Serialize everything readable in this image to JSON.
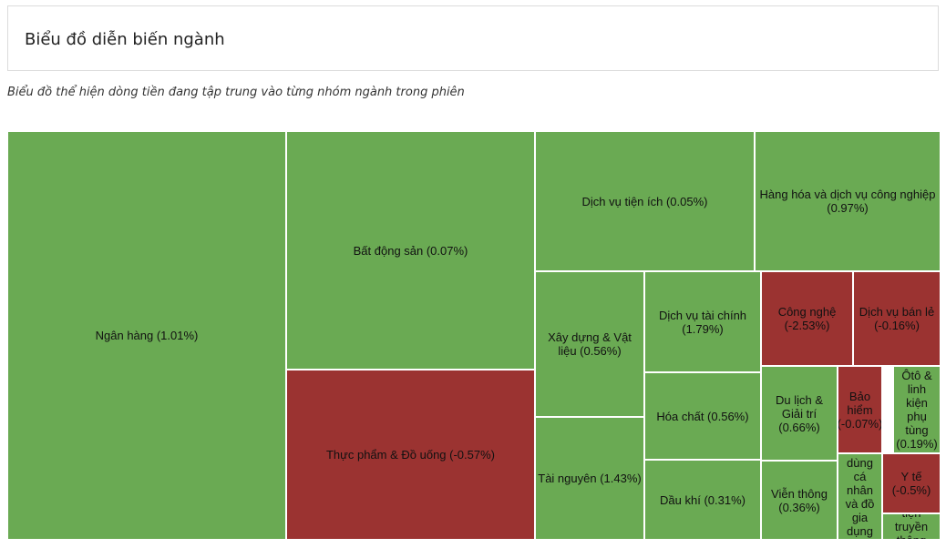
{
  "header": {
    "title": "Biểu đồ diễn biến ngành"
  },
  "subtitle": "Biểu đồ thể hiện dòng tiền đang tập trung vào từng nhóm ngành trong phiên",
  "colors": {
    "positive": "#6aaa53",
    "negative": "#9b3331",
    "border": "#ffffff"
  },
  "chart_data": {
    "type": "treemap",
    "title": "Biểu đồ diễn biến ngành",
    "subtitle": "Biểu đồ thể hiện dòng tiền đang tập trung vào từng nhóm ngành trong phiên",
    "items": [
      {
        "name": "Ngân hàng",
        "change": 1.01,
        "label": "Ngân hàng (1.01%)"
      },
      {
        "name": "Bất động sản",
        "change": 0.07,
        "label": "Bất động sản (0.07%)"
      },
      {
        "name": "Thực phẩm & Đồ uống",
        "change": -0.57,
        "label": "Thực phẩm & Đồ uống (-0.57%)"
      },
      {
        "name": "Dịch vụ tiện ích",
        "change": 0.05,
        "label": "Dịch vụ tiện ích (0.05%)"
      },
      {
        "name": "Hàng hóa và dịch vụ công nghiệp",
        "change": 0.97,
        "label": "Hàng hóa và dịch vụ công nghiệp (0.97%)"
      },
      {
        "name": "Xây dựng & Vật liệu",
        "change": 0.56,
        "label": "Xây dựng & Vật liệu (0.56%)"
      },
      {
        "name": "Dịch vụ tài chính",
        "change": 1.79,
        "label": "Dịch vụ tài chính (1.79%)"
      },
      {
        "name": "Công nghệ",
        "change": -2.53,
        "label": "Công nghệ (-2.53%)"
      },
      {
        "name": "Dịch vụ bán lẻ",
        "change": -0.16,
        "label": "Dịch vụ bán lẻ (-0.16%)"
      },
      {
        "name": "Hóa chất",
        "change": 0.56,
        "label": "Hóa chất (0.56%)"
      },
      {
        "name": "Du lịch & Giải trí",
        "change": 0.66,
        "label": "Du lịch & Giải trí (0.66%)"
      },
      {
        "name": "Bảo hiểm",
        "change": -0.07,
        "label": "Bảo hiểm (-0.07%)"
      },
      {
        "name": "Ôtô & linh kiện phụ tùng",
        "change": 0.19,
        "label": "Ôtô & linh kiện phụ tùng (0.19%)"
      },
      {
        "name": "Tài nguyên",
        "change": 1.43,
        "label": "Tài nguyên (1.43%)"
      },
      {
        "name": "Dầu khí",
        "change": 0.31,
        "label": "Dầu khí (0.31%)"
      },
      {
        "name": "Viễn thông",
        "change": 0.36,
        "label": "Viễn thông (0.36%)"
      },
      {
        "name": "Hàng cá nhân và đồ gia dụng",
        "change": null,
        "label": "dùng cá nhân và đồ gia dụng"
      },
      {
        "name": "Y tế",
        "change": -0.5,
        "label": "Y tế (-0.5%)"
      },
      {
        "name": "Truyền thông",
        "change": null,
        "label": "tiện truyền thông"
      }
    ]
  }
}
